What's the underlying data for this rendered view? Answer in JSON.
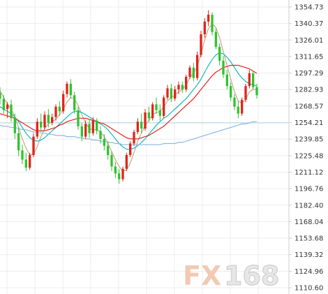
{
  "watermark": {
    "brand_a": "FX",
    "brand_b": "168"
  },
  "colors": {
    "background": "#ffffff",
    "grid": "#ececec",
    "axis": "#cfcfcf",
    "up_candle": "#e0241b",
    "down_candle": "#2ec42e",
    "ma_fast": "#c8a98a",
    "ma_mid": "#15b7b9",
    "ma_slow": "#e0241b",
    "ma_long": "#8fb7e6",
    "reference_line": "#b7dfe6"
  },
  "chart_data": {
    "type": "candlestick",
    "title": "",
    "xlabel": "",
    "ylabel": "",
    "ylim": [
      1110.6,
      1354.73
    ],
    "y_axis_position": "right",
    "grid": true,
    "y_ticks": [
      "1354.73",
      "1340.37",
      "1326.01",
      "1311.65",
      "1297.29",
      "1282.93",
      "1268.57",
      "1254.21",
      "1239.85",
      "1225.48",
      "1211.12",
      "1196.76",
      "1182.40",
      "1168.04",
      "1153.68",
      "1139.32",
      "1124.96",
      "1110.60"
    ],
    "reference_level": 1254.0,
    "candles": [
      {
        "o": 1280,
        "h": 1285,
        "l": 1270,
        "c": 1275
      },
      {
        "o": 1275,
        "h": 1278,
        "l": 1262,
        "c": 1265
      },
      {
        "o": 1266,
        "h": 1272,
        "l": 1258,
        "c": 1270
      },
      {
        "o": 1270,
        "h": 1274,
        "l": 1255,
        "c": 1258
      },
      {
        "o": 1258,
        "h": 1262,
        "l": 1240,
        "c": 1245
      },
      {
        "o": 1245,
        "h": 1250,
        "l": 1225,
        "c": 1230
      },
      {
        "o": 1230,
        "h": 1235,
        "l": 1218,
        "c": 1222
      },
      {
        "o": 1222,
        "h": 1228,
        "l": 1212,
        "c": 1215
      },
      {
        "o": 1215,
        "h": 1228,
        "l": 1213,
        "c": 1226
      },
      {
        "o": 1226,
        "h": 1245,
        "l": 1224,
        "c": 1242
      },
      {
        "o": 1242,
        "h": 1258,
        "l": 1240,
        "c": 1255
      },
      {
        "o": 1255,
        "h": 1262,
        "l": 1246,
        "c": 1250
      },
      {
        "o": 1250,
        "h": 1264,
        "l": 1248,
        "c": 1261
      },
      {
        "o": 1261,
        "h": 1266,
        "l": 1250,
        "c": 1254
      },
      {
        "o": 1254,
        "h": 1262,
        "l": 1252,
        "c": 1259
      },
      {
        "o": 1259,
        "h": 1270,
        "l": 1256,
        "c": 1268
      },
      {
        "o": 1268,
        "h": 1273,
        "l": 1260,
        "c": 1264
      },
      {
        "o": 1264,
        "h": 1282,
        "l": 1262,
        "c": 1279
      },
      {
        "o": 1279,
        "h": 1290,
        "l": 1276,
        "c": 1288
      },
      {
        "o": 1288,
        "h": 1292,
        "l": 1275,
        "c": 1278
      },
      {
        "o": 1278,
        "h": 1281,
        "l": 1262,
        "c": 1265
      },
      {
        "o": 1265,
        "h": 1268,
        "l": 1248,
        "c": 1251
      },
      {
        "o": 1251,
        "h": 1254,
        "l": 1238,
        "c": 1242
      },
      {
        "o": 1242,
        "h": 1256,
        "l": 1240,
        "c": 1253
      },
      {
        "o": 1253,
        "h": 1257,
        "l": 1241,
        "c": 1245
      },
      {
        "o": 1245,
        "h": 1259,
        "l": 1243,
        "c": 1256
      },
      {
        "o": 1256,
        "h": 1258,
        "l": 1244,
        "c": 1247
      },
      {
        "o": 1247,
        "h": 1251,
        "l": 1236,
        "c": 1240
      },
      {
        "o": 1240,
        "h": 1244,
        "l": 1230,
        "c": 1234
      },
      {
        "o": 1234,
        "h": 1238,
        "l": 1222,
        "c": 1226
      },
      {
        "o": 1226,
        "h": 1229,
        "l": 1212,
        "c": 1216
      },
      {
        "o": 1216,
        "h": 1220,
        "l": 1206,
        "c": 1210
      },
      {
        "o": 1210,
        "h": 1214,
        "l": 1201,
        "c": 1205
      },
      {
        "o": 1205,
        "h": 1216,
        "l": 1203,
        "c": 1214
      },
      {
        "o": 1214,
        "h": 1228,
        "l": 1212,
        "c": 1226
      },
      {
        "o": 1226,
        "h": 1238,
        "l": 1224,
        "c": 1236
      },
      {
        "o": 1236,
        "h": 1248,
        "l": 1234,
        "c": 1246
      },
      {
        "o": 1246,
        "h": 1258,
        "l": 1244,
        "c": 1255
      },
      {
        "o": 1255,
        "h": 1262,
        "l": 1245,
        "c": 1249
      },
      {
        "o": 1249,
        "h": 1266,
        "l": 1247,
        "c": 1263
      },
      {
        "o": 1263,
        "h": 1268,
        "l": 1255,
        "c": 1258
      },
      {
        "o": 1258,
        "h": 1272,
        "l": 1256,
        "c": 1270
      },
      {
        "o": 1270,
        "h": 1276,
        "l": 1262,
        "c": 1265
      },
      {
        "o": 1265,
        "h": 1270,
        "l": 1256,
        "c": 1260
      },
      {
        "o": 1260,
        "h": 1278,
        "l": 1258,
        "c": 1276
      },
      {
        "o": 1276,
        "h": 1287,
        "l": 1274,
        "c": 1284
      },
      {
        "o": 1284,
        "h": 1288,
        "l": 1272,
        "c": 1275
      },
      {
        "o": 1275,
        "h": 1286,
        "l": 1273,
        "c": 1283
      },
      {
        "o": 1283,
        "h": 1290,
        "l": 1279,
        "c": 1287
      },
      {
        "o": 1287,
        "h": 1290,
        "l": 1280,
        "c": 1283
      },
      {
        "o": 1283,
        "h": 1296,
        "l": 1281,
        "c": 1294
      },
      {
        "o": 1294,
        "h": 1304,
        "l": 1292,
        "c": 1302
      },
      {
        "o": 1302,
        "h": 1306,
        "l": 1290,
        "c": 1293
      },
      {
        "o": 1293,
        "h": 1316,
        "l": 1291,
        "c": 1313
      },
      {
        "o": 1313,
        "h": 1334,
        "l": 1311,
        "c": 1331
      },
      {
        "o": 1331,
        "h": 1345,
        "l": 1328,
        "c": 1342
      },
      {
        "o": 1342,
        "h": 1352,
        "l": 1338,
        "c": 1348
      },
      {
        "o": 1348,
        "h": 1350,
        "l": 1330,
        "c": 1333
      },
      {
        "o": 1333,
        "h": 1336,
        "l": 1318,
        "c": 1320
      },
      {
        "o": 1320,
        "h": 1323,
        "l": 1304,
        "c": 1308
      },
      {
        "o": 1308,
        "h": 1312,
        "l": 1293,
        "c": 1296
      },
      {
        "o": 1296,
        "h": 1300,
        "l": 1283,
        "c": 1286
      },
      {
        "o": 1286,
        "h": 1289,
        "l": 1273,
        "c": 1276
      },
      {
        "o": 1276,
        "h": 1279,
        "l": 1265,
        "c": 1268
      },
      {
        "o": 1268,
        "h": 1273,
        "l": 1258,
        "c": 1262
      },
      {
        "o": 1262,
        "h": 1276,
        "l": 1260,
        "c": 1274
      },
      {
        "o": 1274,
        "h": 1288,
        "l": 1272,
        "c": 1286
      },
      {
        "o": 1286,
        "h": 1300,
        "l": 1284,
        "c": 1297
      },
      {
        "o": 1297,
        "h": 1299,
        "l": 1283,
        "c": 1285
      },
      {
        "o": 1285,
        "h": 1288,
        "l": 1275,
        "c": 1278
      }
    ],
    "series": [
      {
        "key": "ma_fast",
        "values": [
          1282,
          1276,
          1270,
          1266,
          1259,
          1250,
          1240,
          1232,
          1226,
          1227,
          1233,
          1242,
          1249,
          1253,
          1255,
          1257,
          1261,
          1266,
          1272,
          1276,
          1275,
          1269,
          1261,
          1254,
          1249,
          1248,
          1248,
          1246,
          1242,
          1236,
          1229,
          1222,
          1216,
          1212,
          1213,
          1219,
          1228,
          1238,
          1245,
          1252,
          1256,
          1261,
          1263,
          1264,
          1268,
          1273,
          1276,
          1278,
          1281,
          1283,
          1287,
          1293,
          1297,
          1303,
          1314,
          1326,
          1336,
          1340,
          1337,
          1328,
          1316,
          1304,
          1292,
          1281,
          1273,
          1271,
          1274,
          1281,
          1283,
          1283
        ]
      },
      {
        "key": "ma_mid",
        "values": [
          1268,
          1266,
          1264,
          1262,
          1259,
          1255,
          1250,
          1245,
          1241,
          1239,
          1238,
          1239,
          1241,
          1244,
          1247,
          1250,
          1253,
          1256,
          1259,
          1262,
          1264,
          1264,
          1263,
          1261,
          1259,
          1257,
          1255,
          1253,
          1251,
          1248,
          1244,
          1240,
          1236,
          1233,
          1231,
          1231,
          1232,
          1234,
          1237,
          1240,
          1244,
          1248,
          1252,
          1255,
          1258,
          1260,
          1263,
          1266,
          1269,
          1272,
          1275,
          1279,
          1283,
          1287,
          1292,
          1298,
          1304,
          1309,
          1313,
          1315,
          1314,
          1311,
          1307,
          1302,
          1297,
          1293,
          1290,
          1288,
          1287,
          1286
        ]
      },
      {
        "key": "ma_slow",
        "values": [
          1262,
          1261,
          1260,
          1259,
          1258,
          1256,
          1254,
          1252,
          1250,
          1248,
          1247,
          1247,
          1247,
          1248,
          1249,
          1250,
          1252,
          1253,
          1255,
          1256,
          1257,
          1258,
          1258,
          1258,
          1257,
          1256,
          1255,
          1254,
          1253,
          1251,
          1249,
          1247,
          1245,
          1243,
          1241,
          1240,
          1240,
          1240,
          1241,
          1242,
          1243,
          1245,
          1247,
          1249,
          1251,
          1254,
          1257,
          1260,
          1263,
          1266,
          1269,
          1272,
          1275,
          1279,
          1283,
          1287,
          1291,
          1295,
          1298,
          1300,
          1302,
          1303,
          1304,
          1304,
          1304,
          1303,
          1302,
          1301,
          1299,
          1297
        ]
      },
      {
        "key": "ma_long",
        "values": [
          1252,
          1251,
          1251,
          1250,
          1250,
          1249,
          1248,
          1248,
          1247,
          1246,
          1246,
          1245,
          1245,
          1244,
          1244,
          1243,
          1243,
          1243,
          1242,
          1242,
          1242,
          1241,
          1241,
          1240,
          1240,
          1239,
          1239,
          1238,
          1238,
          1237,
          1237,
          1236,
          1236,
          1235,
          1235,
          1235,
          1235,
          1235,
          1235,
          1235,
          1235,
          1235,
          1235,
          1235,
          1236,
          1236,
          1236,
          1236,
          1237,
          1237,
          1238,
          1239,
          1240,
          1241,
          1242,
          1243,
          1244,
          1245,
          1246,
          1247,
          1248,
          1249,
          1250,
          1251,
          1252,
          1253,
          1253,
          1254,
          1255,
          1255
        ]
      }
    ]
  }
}
